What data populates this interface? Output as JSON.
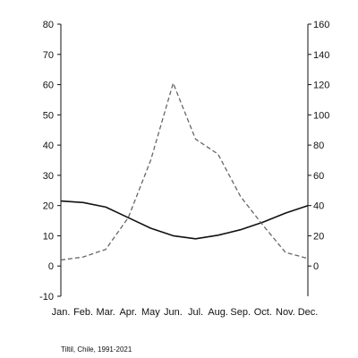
{
  "chart_data": {
    "type": "line",
    "title": "",
    "caption": "Tiltil, Chile, 1991-2021",
    "caption_second_line": "",
    "x": [
      "Jan.",
      "Feb.",
      "Mar.",
      "Apr.",
      "May",
      "Jun.",
      "Jul.",
      "Aug.",
      "Sep.",
      "Oct.",
      "Nov.",
      "Dec."
    ],
    "left_axis": {
      "label": "",
      "ylim": [
        -10,
        80
      ],
      "ticks": [
        -10,
        0,
        10,
        20,
        30,
        40,
        50,
        60,
        70,
        80
      ]
    },
    "right_axis": {
      "label": "",
      "ylim": [
        -20,
        160
      ],
      "ticks": [
        0,
        20,
        40,
        60,
        80,
        100,
        120,
        140,
        160
      ]
    },
    "grid": false,
    "legend": "none",
    "series": [
      {
        "axis": "left",
        "style": "solid",
        "color": "#111111",
        "values": [
          21.5,
          21,
          19.5,
          16,
          12.5,
          10,
          9,
          10.2,
          12,
          14.5,
          17.5,
          20
        ]
      },
      {
        "axis": "right",
        "style": "dashed",
        "color": "#666666",
        "values": [
          4,
          6,
          11,
          32,
          70,
          121,
          84,
          74,
          46,
          27,
          9,
          5
        ]
      }
    ]
  }
}
